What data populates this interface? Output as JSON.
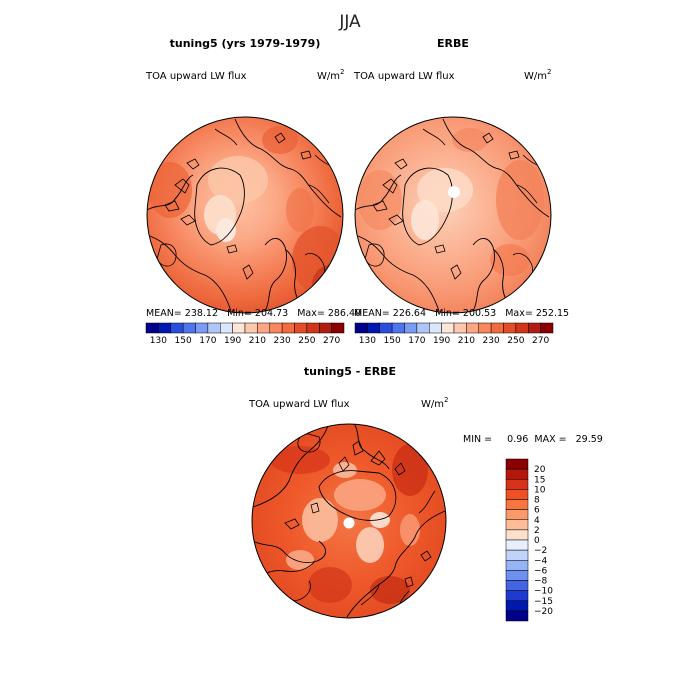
{
  "chart_data": {
    "type": "map",
    "title": "JJA",
    "colors": {
      "outline": "#000000",
      "background": "#ffffff"
    },
    "panels": [
      {
        "id": "model",
        "title": "tuning5 (yrs 1979-1979)",
        "variable": "TOA upward LW flux",
        "units": "W/m",
        "units_exp": "2",
        "stats": {
          "mean": "238.12",
          "min": "204.73",
          "max": "286.40"
        },
        "stats_text": "MEAN= 238.12   Min= 204.73   Max= 286.40",
        "colorbar": {
          "ticks": [
            "130",
            "150",
            "170",
            "190",
            "210",
            "230",
            "250",
            "270"
          ],
          "colors": [
            "#00008b",
            "#0019b3",
            "#2a4fe0",
            "#4f74f0",
            "#7a9cf5",
            "#aec6fa",
            "#dbe7fd",
            "#fde6d8",
            "#fcc7ad",
            "#fba785",
            "#f8865e",
            "#f26a3f",
            "#e64d26",
            "#d2361a",
            "#b01d10",
            "#8b0000"
          ]
        }
      },
      {
        "id": "obs",
        "title": "ERBE",
        "variable": "TOA upward LW flux",
        "units": "W/m",
        "units_exp": "2",
        "stats": {
          "mean": "226.64",
          "min": "200.53",
          "max": "252.15"
        },
        "stats_text": "MEAN= 226.64   Min= 200.53   Max= 252.15",
        "colorbar": {
          "ticks": [
            "130",
            "150",
            "170",
            "190",
            "210",
            "230",
            "250",
            "270"
          ],
          "colors": [
            "#00008b",
            "#0019b3",
            "#2a4fe0",
            "#4f74f0",
            "#7a9cf5",
            "#aec6fa",
            "#dbe7fd",
            "#fde6d8",
            "#fcc7ad",
            "#fba785",
            "#f8865e",
            "#f26a3f",
            "#e64d26",
            "#d2361a",
            "#b01d10",
            "#8b0000"
          ]
        }
      },
      {
        "id": "diff",
        "title": "tuning5 - ERBE",
        "variable": "TOA upward LW flux",
        "units": "W/m",
        "units_exp": "2",
        "stats": {
          "min": "0.96",
          "max": "29.59"
        },
        "stats_text": "MIN =     0.96  MAX =   29.59",
        "colorbar": {
          "ticks": [
            "20",
            "15",
            "10",
            "8",
            "6",
            "4",
            "2",
            "0",
            "−2",
            "−4",
            "−6",
            "−8",
            "−10",
            "−15",
            "−20"
          ],
          "colors": [
            "#8b0000",
            "#b5170c",
            "#d8321a",
            "#ef5122",
            "#f7763e",
            "#fa9a6a",
            "#fcbd98",
            "#fde0cc",
            "#e8f0ff",
            "#c0d4fa",
            "#96b4f5",
            "#6d91ef",
            "#4465e3",
            "#1e3ad0",
            "#0018ab",
            "#00008b"
          ]
        }
      }
    ]
  }
}
